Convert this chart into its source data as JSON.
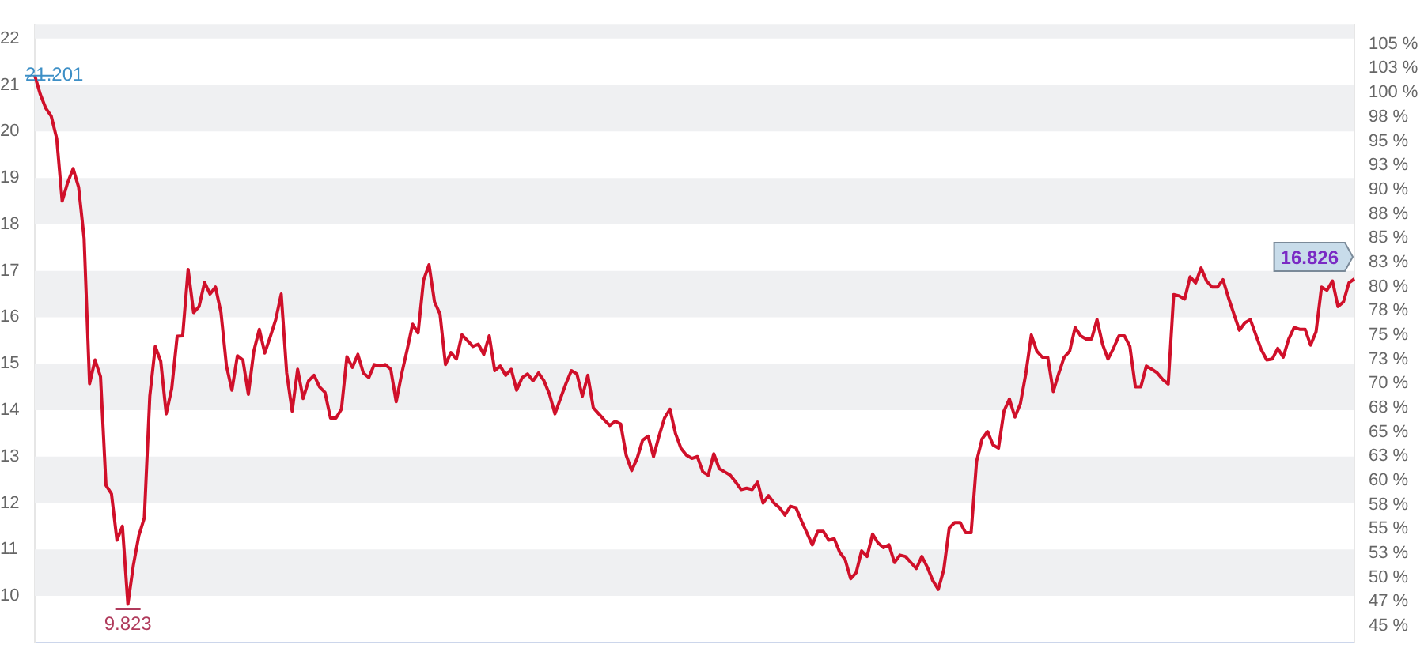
{
  "chart_data": {
    "type": "line",
    "tick_labels": "y",
    "ylim": [
      9,
      22.3
    ],
    "yticks": [
      10,
      11,
      12,
      13,
      14,
      15,
      16,
      17,
      18,
      19,
      20,
      21,
      22
    ],
    "y2lim": [
      43.3,
      107
    ],
    "y2ticks": [
      {
        "value": 45,
        "label": "45 %"
      },
      {
        "value": 47.5,
        "label": "47 %"
      },
      {
        "value": 50,
        "label": "50 %"
      },
      {
        "value": 52.5,
        "label": "53 %"
      },
      {
        "value": 55,
        "label": "55 %"
      },
      {
        "value": 57.5,
        "label": "58 %"
      },
      {
        "value": 60,
        "label": "60 %"
      },
      {
        "value": 62.5,
        "label": "63 %"
      },
      {
        "value": 65,
        "label": "65 %"
      },
      {
        "value": 67.5,
        "label": "68 %"
      },
      {
        "value": 70,
        "label": "70 %"
      },
      {
        "value": 72.5,
        "label": "73 %"
      },
      {
        "value": 75,
        "label": "75 %"
      },
      {
        "value": 77.5,
        "label": "78 %"
      },
      {
        "value": 80,
        "label": "80 %"
      },
      {
        "value": 82.5,
        "label": "83 %"
      },
      {
        "value": 85,
        "label": "85 %"
      },
      {
        "value": 87.5,
        "label": "88 %"
      },
      {
        "value": 90,
        "label": "90 %"
      },
      {
        "value": 92.5,
        "label": "93 %"
      },
      {
        "value": 95,
        "label": "95 %"
      },
      {
        "value": 97.5,
        "label": "98 %"
      },
      {
        "value": 100,
        "label": "100 %"
      },
      {
        "value": 102.5,
        "label": "103 %"
      },
      {
        "value": 105,
        "label": "105 %"
      }
    ],
    "bands": [
      {
        "axis": "y",
        "from": 10,
        "to": 11,
        "color": "#eff0f2"
      },
      {
        "axis": "y",
        "from": 12,
        "to": 13,
        "color": "#eff0f2"
      },
      {
        "axis": "y",
        "from": 14,
        "to": 15,
        "color": "#eff0f2"
      },
      {
        "axis": "y",
        "from": 16,
        "to": 17,
        "color": "#eff0f2"
      },
      {
        "axis": "y",
        "from": 18,
        "to": 19,
        "color": "#eff0f2"
      },
      {
        "axis": "y",
        "from": 20,
        "to": 21,
        "color": "#eff0f2"
      },
      {
        "axis": "y",
        "from": 22,
        "to": 22.3,
        "color": "#eff0f2"
      }
    ],
    "annotations": [
      "21.201",
      "9.823",
      "16.826"
    ],
    "categories": [
      null,
      null,
      null,
      null,
      null,
      null,
      null,
      null,
      null,
      null,
      null,
      null,
      null,
      null,
      null,
      null,
      null,
      null,
      null,
      null,
      null,
      null,
      null,
      null,
      null,
      null,
      null,
      null,
      null,
      null,
      null,
      null,
      null,
      null,
      null,
      null,
      null,
      null,
      null,
      null,
      null,
      null,
      null,
      null,
      null,
      null,
      null,
      null,
      null,
      null,
      null,
      null,
      null,
      null,
      null,
      null,
      null,
      null,
      null,
      null,
      null,
      null,
      null,
      null,
      null,
      null,
      null,
      null,
      null,
      null,
      null,
      null,
      null,
      null,
      null,
      null,
      null,
      null,
      null,
      null,
      null,
      null,
      null,
      null,
      null,
      null,
      null,
      null,
      null,
      null,
      null,
      null,
      null,
      null,
      null,
      null,
      null,
      null,
      null,
      null,
      null,
      null,
      null,
      null,
      null,
      null,
      null,
      null,
      null,
      null,
      null,
      null,
      null,
      null,
      null,
      null,
      null,
      null,
      null,
      null,
      null,
      null,
      null,
      null,
      null,
      null,
      null,
      null,
      null,
      null,
      null,
      null,
      null,
      null,
      null,
      null,
      null,
      null,
      null,
      null,
      null,
      null,
      null,
      null,
      null,
      null,
      null,
      null,
      null,
      null,
      null,
      null,
      null,
      null,
      null,
      null,
      null,
      null,
      null,
      null,
      null,
      null,
      null,
      null,
      null,
      null,
      null,
      null,
      null,
      null,
      null,
      null,
      null,
      null,
      null,
      null,
      null,
      null,
      null,
      null,
      null,
      null,
      null,
      null,
      null,
      null,
      null,
      null,
      null,
      null,
      null,
      null,
      null,
      null,
      null,
      null,
      null,
      null,
      null,
      null,
      null,
      null,
      null,
      null,
      null,
      null,
      null,
      null,
      null,
      null,
      null,
      null,
      null,
      null,
      null,
      null,
      null,
      null,
      null,
      null,
      null,
      null,
      null,
      null,
      null,
      null,
      null,
      null,
      null,
      null,
      null,
      null,
      null,
      null,
      null,
      null,
      null,
      null,
      null,
      null,
      null,
      null
    ],
    "series": [
      {
        "color": "#d0102a",
        "values": [
          21.201,
          20.8,
          20.5,
          20.33,
          19.85,
          18.5,
          18.9,
          19.2,
          18.8,
          17.7,
          14.57,
          15.08,
          14.72,
          12.38,
          12.2,
          11.2,
          11.5,
          9.823,
          10.66,
          11.3,
          11.68,
          14.3,
          15.37,
          15.05,
          13.92,
          14.46,
          15.59,
          15.6,
          17.03,
          16.1,
          16.23,
          16.75,
          16.5,
          16.65,
          16.1,
          14.95,
          14.43,
          15.17,
          15.08,
          14.34,
          15.27,
          15.74,
          15.23,
          15.58,
          15.95,
          16.5,
          14.8,
          13.98,
          14.88,
          14.25,
          14.63,
          14.75,
          14.5,
          14.38,
          13.83,
          13.83,
          14.02,
          15.15,
          14.92,
          15.2,
          14.8,
          14.7,
          14.98,
          14.95,
          14.98,
          14.88,
          14.18,
          14.78,
          15.3,
          15.85,
          15.66,
          16.8,
          17.13,
          16.33,
          16.07,
          14.98,
          15.24,
          15.1,
          15.62,
          15.5,
          15.37,
          15.42,
          15.2,
          15.6,
          14.85,
          14.95,
          14.75,
          14.88,
          14.43,
          14.7,
          14.78,
          14.63,
          14.8,
          14.63,
          14.34,
          13.92,
          14.25,
          14.57,
          14.85,
          14.78,
          14.3,
          14.75,
          14.05,
          13.92,
          13.79,
          13.67,
          13.76,
          13.7,
          13.03,
          12.7,
          12.96,
          13.35,
          13.44,
          13.0,
          13.44,
          13.83,
          14.02,
          13.5,
          13.18,
          13.03,
          12.96,
          13.0,
          12.67,
          12.6,
          13.06,
          12.74,
          12.67,
          12.6,
          12.45,
          12.29,
          12.32,
          12.29,
          12.45,
          12.0,
          12.16,
          12.0,
          11.9,
          11.74,
          11.93,
          11.9,
          11.62,
          11.36,
          11.1,
          11.39,
          11.39,
          11.2,
          11.23,
          10.94,
          10.78,
          10.37,
          10.5,
          10.97,
          10.85,
          11.33,
          11.14,
          11.04,
          11.1,
          10.72,
          10.88,
          10.85,
          10.72,
          10.59,
          10.85,
          10.62,
          10.33,
          10.14,
          10.56,
          11.46,
          11.58,
          11.58,
          11.36,
          11.36,
          12.9,
          13.38,
          13.54,
          13.25,
          13.18,
          13.98,
          14.24,
          13.85,
          14.14,
          14.79,
          15.62,
          15.27,
          15.14,
          15.14,
          14.4,
          14.79,
          15.14,
          15.27,
          15.78,
          15.6,
          15.53,
          15.53,
          15.95,
          15.42,
          15.1,
          15.33,
          15.6,
          15.6,
          15.37,
          14.5,
          14.5,
          14.95,
          14.88,
          14.8,
          14.66,
          14.56,
          16.49,
          16.46,
          16.39,
          16.87,
          16.74,
          17.06,
          16.78,
          16.65,
          16.65,
          16.81,
          16.42,
          16.07,
          15.72,
          15.88,
          15.95,
          15.62,
          15.3,
          15.08,
          15.1,
          15.33,
          15.14,
          15.53,
          15.78,
          15.74,
          15.74,
          15.4,
          15.69,
          16.65,
          16.58,
          16.78,
          16.23,
          16.33,
          16.74,
          16.826
        ]
      }
    ]
  }
}
